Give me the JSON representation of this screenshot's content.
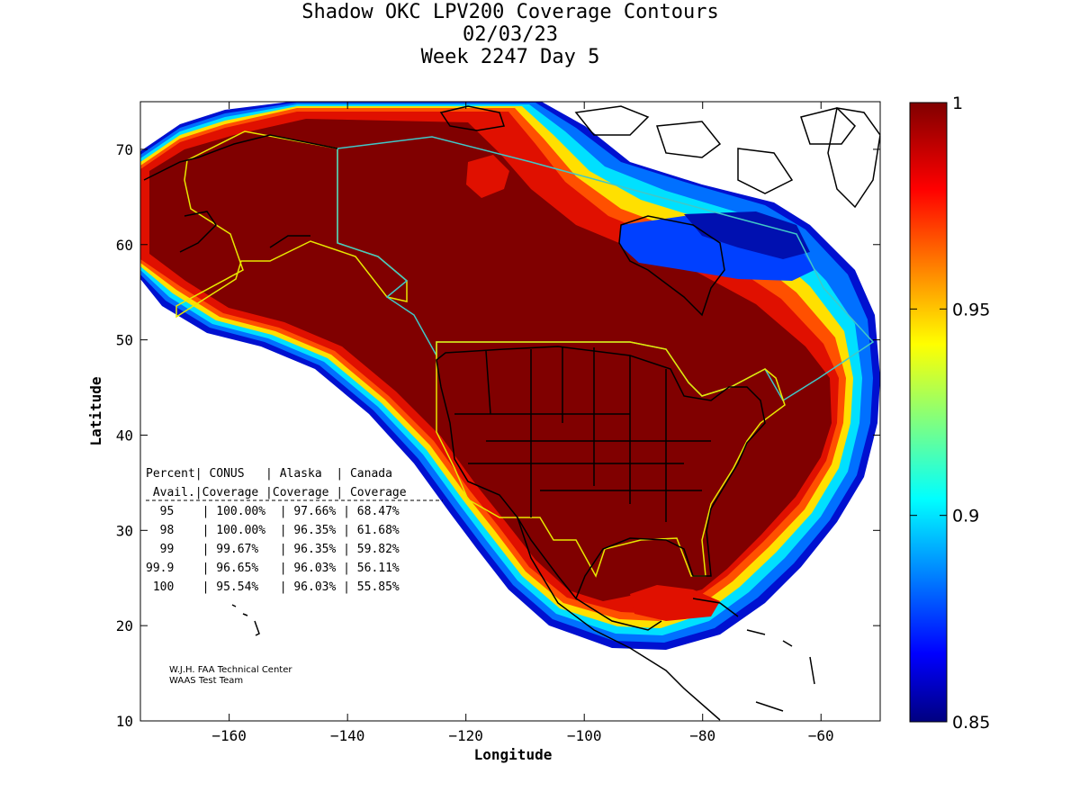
{
  "title_lines": [
    "Shadow OKC LPV200 Coverage Contours",
    "02/03/23",
    "Week 2247 Day 5"
  ],
  "chart_data": {
    "type": "heatmap",
    "title": "Shadow OKC LPV200 Coverage Contours",
    "xlabel": "Longitude",
    "ylabel": "Latitude",
    "xlim": [
      -175,
      -50
    ],
    "ylim": [
      10,
      75
    ],
    "xticks": [
      -160,
      -140,
      -120,
      -100,
      -80,
      -60
    ],
    "yticks": [
      10,
      20,
      30,
      40,
      50,
      60,
      70
    ],
    "colorbar": {
      "range": [
        0.85,
        1.0
      ],
      "tick_labels": [
        "1",
        "0.95",
        "0.9",
        "0.85"
      ],
      "tick_values": [
        1.0,
        0.95,
        0.9,
        0.85
      ],
      "colormap": "jet"
    },
    "table": {
      "header1": "Percent| CONUS   | Alaska  | Canada",
      "header2": " Avail.|Coverage |Coverage | Coverage",
      "columns": [
        "Percent Avail.",
        "CONUS Coverage",
        "Alaska Coverage",
        "Canada Coverage"
      ],
      "rows": [
        "  95    | 100.00%  | 97.66% | 68.47%",
        "  98    | 100.00%  | 96.35% | 61.68%",
        "  99    | 99.67%   | 96.35% | 59.82%",
        "99.9    | 96.65%   | 96.03% | 56.11%",
        " 100    | 95.54%   | 96.03% | 55.85%"
      ]
    }
  },
  "credits": [
    "W.J.H. FAA Technical Center",
    "WAAS Test Team"
  ],
  "colors": {
    "dark_red": "#800000",
    "red": "#ff0000",
    "orange": "#ff8000",
    "yellow": "#ffff00",
    "cyan": "#00ffff",
    "blue": "#0000ff",
    "dark_blue": "#000080",
    "alaska_boundary": "#e8e800",
    "canada_boundary": "#40c8c8"
  }
}
